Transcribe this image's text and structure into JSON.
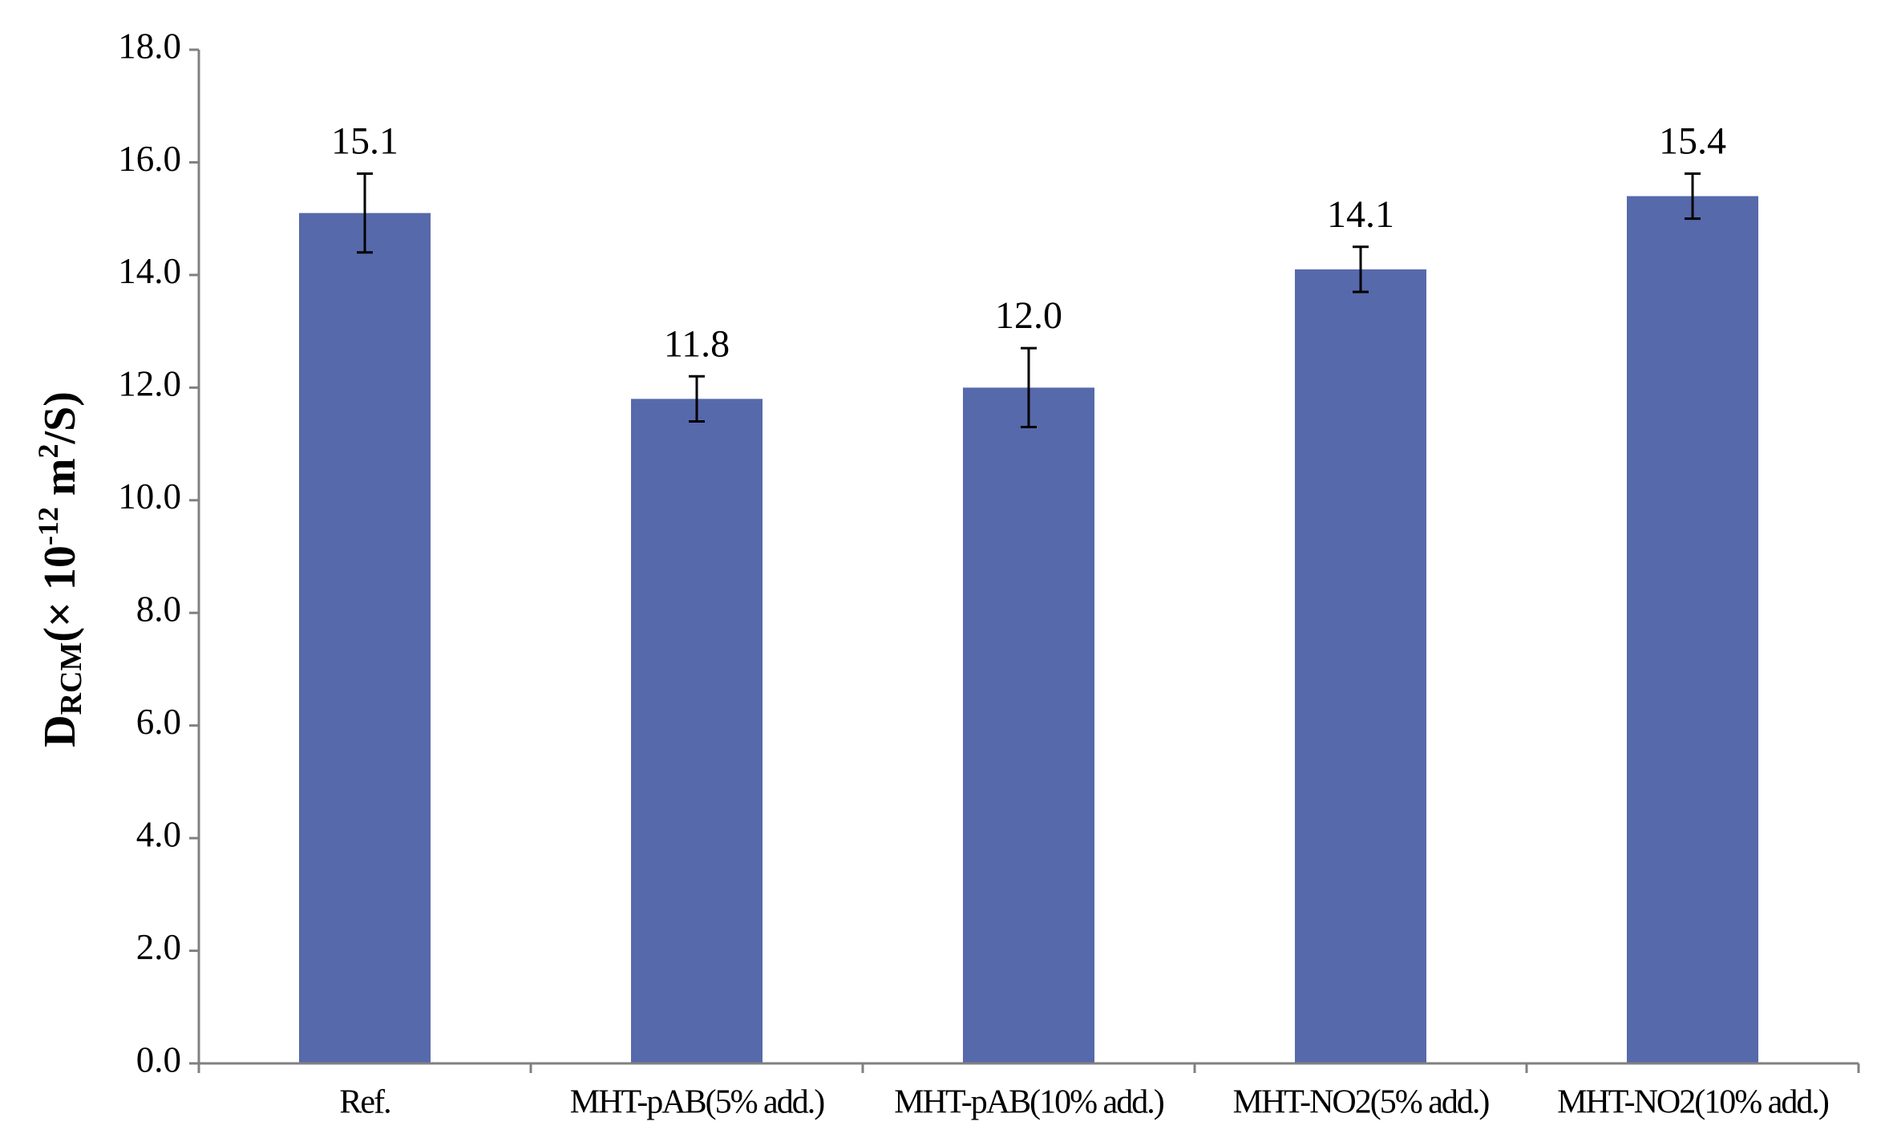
{
  "chart_data": {
    "type": "bar",
    "ylabel_parts": [
      "D",
      "RCM",
      "(× 10",
      "-12",
      " m",
      "2",
      "/S)"
    ],
    "categories": [
      "Ref.",
      "MHT-pAB(5% add.)",
      "MHT-pAB(10% add.)",
      "MHT-NO2(5% add.)",
      "MHT-NO2(10% add.)"
    ],
    "values": [
      15.1,
      11.8,
      12.0,
      14.1,
      15.4
    ],
    "value_labels": [
      "15.1",
      "11.8",
      "12.0",
      "14.1",
      "15.4"
    ],
    "errors": [
      0.7,
      0.4,
      0.7,
      0.4,
      0.4
    ],
    "color": "#5669ab",
    "ylim": [
      0,
      18
    ],
    "yticks": [
      {
        "value": 0,
        "label": "0.0"
      },
      {
        "value": 2,
        "label": "2.0"
      },
      {
        "value": 4,
        "label": "4.0"
      },
      {
        "value": 6,
        "label": "6.0"
      },
      {
        "value": 8,
        "label": "8.0"
      },
      {
        "value": 10,
        "label": "10.0"
      },
      {
        "value": 12,
        "label": "12.0"
      },
      {
        "value": 14,
        "label": "14.0"
      },
      {
        "value": 16,
        "label": "16.0"
      },
      {
        "value": 18,
        "label": "18.0"
      }
    ]
  }
}
